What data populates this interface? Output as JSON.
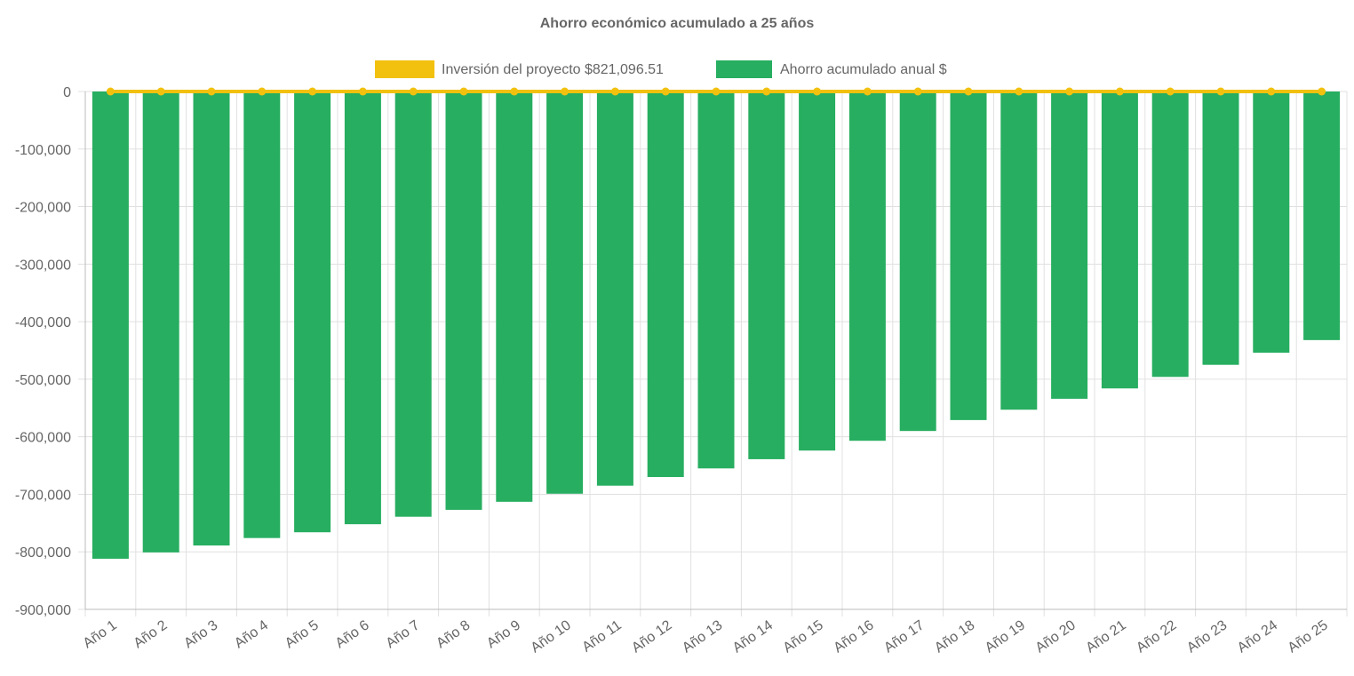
{
  "chart_data": {
    "type": "bar",
    "title": "Ahorro económico acumulado a 25 años",
    "categories": [
      "Año 1",
      "Año 2",
      "Año 3",
      "Año 4",
      "Año 5",
      "Año 6",
      "Año 7",
      "Año 8",
      "Año 9",
      "Año 10",
      "Año 11",
      "Año 12",
      "Año 13",
      "Año 14",
      "Año 15",
      "Año 16",
      "Año 17",
      "Año 18",
      "Año 19",
      "Año 20",
      "Año 21",
      "Año 22",
      "Año 23",
      "Año 24",
      "Año 25"
    ],
    "series": [
      {
        "name": "Inversión del proyecto $821,096.51",
        "type": "line",
        "color": "#f2c10f",
        "values": [
          0,
          0,
          0,
          0,
          0,
          0,
          0,
          0,
          0,
          0,
          0,
          0,
          0,
          0,
          0,
          0,
          0,
          0,
          0,
          0,
          0,
          0,
          0,
          0,
          0
        ]
      },
      {
        "name": "Ahorro acumulado anual $",
        "type": "bar",
        "color": "#27ae60",
        "values": [
          -812000,
          -801000,
          -789000,
          -776000,
          -766000,
          -752000,
          -739000,
          -727000,
          -713000,
          -699000,
          -685000,
          -670000,
          -655000,
          -639000,
          -624000,
          -607000,
          -590000,
          -571000,
          -553000,
          -534000,
          -516000,
          -496000,
          -475000,
          -454000,
          -432000
        ]
      }
    ],
    "ylim": [
      -900000,
      0
    ],
    "yticks": [
      0,
      -100000,
      -200000,
      -300000,
      -400000,
      -500000,
      -600000,
      -700000,
      -800000,
      -900000
    ],
    "ytick_labels": [
      "0",
      "-100,000",
      "-200,000",
      "-300,000",
      "-400,000",
      "-500,000",
      "-600,000",
      "-700,000",
      "-800,000",
      "-900,000"
    ],
    "grid": true,
    "legend_position": "top"
  }
}
